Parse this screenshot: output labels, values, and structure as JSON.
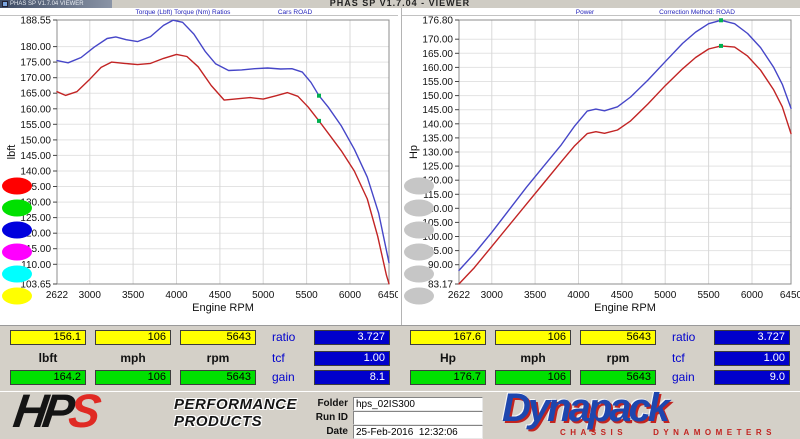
{
  "window": {
    "title": "PHAS SP V1.7.04 - VIEWER",
    "corner_title": "PHAS SP V1.7.04 VIEWER"
  },
  "chart_data": [
    {
      "type": "line",
      "title": "Torque (Lbft)  Torque (Nm)  Ratios",
      "subtitle": "Cars ROAD",
      "xlabel": "Engine RPM",
      "ylabel": "lbft",
      "xlim": [
        2622,
        6450
      ],
      "ylim": [
        103.65,
        188.55
      ],
      "x_ticks": [
        2622,
        3000,
        3500,
        4000,
        4500,
        5000,
        5500,
        6000,
        6450
      ],
      "y_ticks": [
        188.55,
        180,
        175,
        170,
        165,
        160,
        155,
        150,
        145,
        140,
        135,
        130,
        125,
        120,
        115,
        110,
        103.65
      ],
      "grid": true,
      "legend_colors": [
        "#ff0000",
        "#00e000",
        "#0000dd",
        "#ff00ff",
        "#00ffff",
        "#ffff00"
      ],
      "cursor_rpm": 5643,
      "series": [
        {
          "name": "baseline-torque",
          "color": "#c22424",
          "x": [
            2622,
            2720,
            2850,
            3000,
            3130,
            3250,
            3400,
            3550,
            3700,
            3850,
            4000,
            4120,
            4250,
            4400,
            4550,
            4700,
            4850,
            5000,
            5150,
            5280,
            5400,
            5520,
            5643,
            5780,
            5900,
            6050,
            6200,
            6320,
            6420,
            6450
          ],
          "y": [
            165.5,
            164.3,
            165.5,
            169.5,
            173.3,
            175.0,
            174.6,
            174.2,
            174.6,
            176.2,
            177.5,
            176.8,
            173.5,
            167.5,
            162.8,
            163.2,
            163.6,
            163.1,
            164.2,
            165.2,
            164.0,
            160.5,
            156.1,
            151.0,
            146.5,
            140.0,
            131.0,
            119.0,
            106.5,
            103.7
          ]
        },
        {
          "name": "modified-torque",
          "color": "#4646c8",
          "x": [
            2622,
            2750,
            2900,
            3050,
            3200,
            3300,
            3420,
            3550,
            3700,
            3850,
            3960,
            4070,
            4200,
            4330,
            4450,
            4600,
            4750,
            4900,
            5050,
            5200,
            5330,
            5450,
            5550,
            5643,
            5750,
            5900,
            6050,
            6200,
            6330,
            6420,
            6450
          ],
          "y": [
            175.5,
            174.8,
            176.5,
            179.8,
            182.6,
            183.1,
            182.2,
            181.6,
            183.2,
            186.8,
            188.5,
            187.8,
            184.0,
            178.5,
            174.5,
            172.3,
            172.5,
            172.9,
            173.1,
            172.8,
            172.9,
            171.8,
            168.5,
            164.2,
            160.5,
            154.5,
            147.0,
            138.0,
            126.5,
            114.5,
            110.5
          ]
        }
      ]
    },
    {
      "type": "line",
      "title": "Power",
      "subtitle": "Correction Method: ROAD",
      "xlabel": "Engine RPM",
      "ylabel": "Hp",
      "xlim": [
        2622,
        6450
      ],
      "ylim": [
        83.17,
        176.8
      ],
      "x_ticks": [
        2622,
        3000,
        3500,
        4000,
        4500,
        5000,
        5500,
        6000,
        6450
      ],
      "y_ticks": [
        176.8,
        170,
        165,
        160,
        155,
        150,
        145,
        140,
        135,
        130,
        125,
        120,
        115,
        110,
        105,
        100,
        95,
        90,
        83.17
      ],
      "grid": true,
      "legend_colors": [
        "#c6c6c6",
        "#c6c6c6",
        "#c6c6c6",
        "#c6c6c6",
        "#c6c6c6",
        "#c6c6c6"
      ],
      "cursor_rpm": 5643,
      "series": [
        {
          "name": "baseline-power",
          "color": "#c22424",
          "x": [
            2622,
            2800,
            3000,
            3200,
            3400,
            3600,
            3800,
            3950,
            4100,
            4200,
            4300,
            4450,
            4600,
            4800,
            5000,
            5200,
            5350,
            5500,
            5643,
            5800,
            5950,
            6100,
            6250,
            6350,
            6450
          ],
          "y": [
            83.2,
            89.0,
            96.5,
            104.0,
            111.5,
            119.0,
            126.5,
            132.0,
            136.5,
            137.2,
            136.6,
            137.8,
            141.0,
            147.0,
            153.5,
            159.5,
            163.5,
            166.5,
            167.6,
            167.2,
            164.0,
            159.0,
            152.0,
            146.0,
            136.5
          ]
        },
        {
          "name": "modified-power",
          "color": "#4646c8",
          "x": [
            2622,
            2800,
            3000,
            3200,
            3400,
            3600,
            3800,
            3950,
            4100,
            4200,
            4300,
            4450,
            4600,
            4800,
            5000,
            5200,
            5350,
            5500,
            5643,
            5800,
            5950,
            6100,
            6250,
            6350,
            6450
          ],
          "y": [
            88.0,
            94.0,
            101.5,
            109.5,
            117.5,
            125.0,
            132.5,
            139.0,
            144.5,
            145.2,
            144.6,
            146.0,
            149.5,
            155.5,
            162.0,
            168.5,
            172.5,
            175.5,
            176.7,
            175.5,
            172.0,
            167.0,
            160.0,
            154.0,
            145.5
          ]
        }
      ]
    }
  ],
  "tables": [
    {
      "run1": [
        "156.1",
        "106",
        "5643"
      ],
      "units": [
        "lbft",
        "mph",
        "rpm"
      ],
      "run2": [
        "164.2",
        "106",
        "5643"
      ],
      "side": [
        {
          "label": "ratio",
          "value": "3.727"
        },
        {
          "label": "tcf",
          "value": "1.00"
        },
        {
          "label": "gain",
          "value": "8.1"
        }
      ]
    },
    {
      "run1": [
        "167.6",
        "106",
        "5643"
      ],
      "units": [
        "Hp",
        "mph",
        "rpm"
      ],
      "run2": [
        "176.7",
        "106",
        "5643"
      ],
      "side": [
        {
          "label": "ratio",
          "value": "3.727"
        },
        {
          "label": "tcf",
          "value": "1.00"
        },
        {
          "label": "gain",
          "value": "9.0"
        }
      ]
    }
  ],
  "footer": {
    "form": {
      "folder_label": "Folder",
      "folder_value": "hps_02IS300",
      "runid_label": "Run ID",
      "runid_value": "",
      "date_label": "Date",
      "date_value": "25-Feb-2016  12:32:06"
    },
    "hps": {
      "black": "HP",
      "red": "S",
      "line1": "PERFORMANCE",
      "line2": "PRODUCTS"
    },
    "dynapack": {
      "name": "Dynapack",
      "line1": "CHASSIS",
      "line2": "DYNAMOMETERS"
    }
  },
  "colors": {
    "curve_red": "#c22424",
    "curve_blue": "#4646c8",
    "box_yellow": "#ffff00",
    "box_green": "#00e000",
    "box_blue": "#0000cc",
    "label_blue": "#0000cc",
    "header_blue": "#2424bb",
    "cursor_marker": "#00b050"
  }
}
